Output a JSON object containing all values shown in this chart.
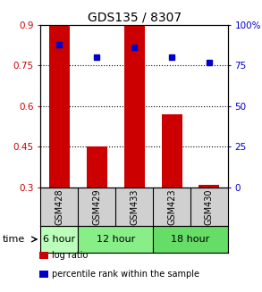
{
  "title": "GDS135 / 8307",
  "samples": [
    "GSM428",
    "GSM429",
    "GSM433",
    "GSM423",
    "GSM430"
  ],
  "log_ratio": [
    0.9,
    0.45,
    0.9,
    0.57,
    0.31
  ],
  "percentile_rank": [
    88,
    80,
    86,
    80,
    77
  ],
  "bar_bottom": 0.3,
  "ylim_left": [
    0.3,
    0.9
  ],
  "ylim_right": [
    0,
    100
  ],
  "yticks_left": [
    0.3,
    0.45,
    0.6,
    0.75,
    0.9
  ],
  "yticks_right": [
    0,
    25,
    50,
    75,
    100
  ],
  "ytick_labels_left": [
    "0.3",
    "0.45",
    "0.6",
    "0.75",
    "0.9"
  ],
  "ytick_labels_right": [
    "0",
    "25",
    "50",
    "75",
    "100%"
  ],
  "bar_color": "#cc0000",
  "dot_color": "#0000cc",
  "time_groups": [
    {
      "label": "6 hour",
      "samples": [
        "GSM428"
      ],
      "color": "#bbffbb"
    },
    {
      "label": "12 hour",
      "samples": [
        "GSM429",
        "GSM433"
      ],
      "color": "#88ee88"
    },
    {
      "label": "18 hour",
      "samples": [
        "GSM423",
        "GSM430"
      ],
      "color": "#66dd66"
    }
  ],
  "time_label": "time",
  "legend_items": [
    {
      "label": "log ratio",
      "color": "#cc0000"
    },
    {
      "label": "percentile rank within the sample",
      "color": "#0000cc"
    }
  ],
  "background_color": "#ffffff",
  "sample_cell_color": "#d0d0d0",
  "bar_width": 0.55
}
